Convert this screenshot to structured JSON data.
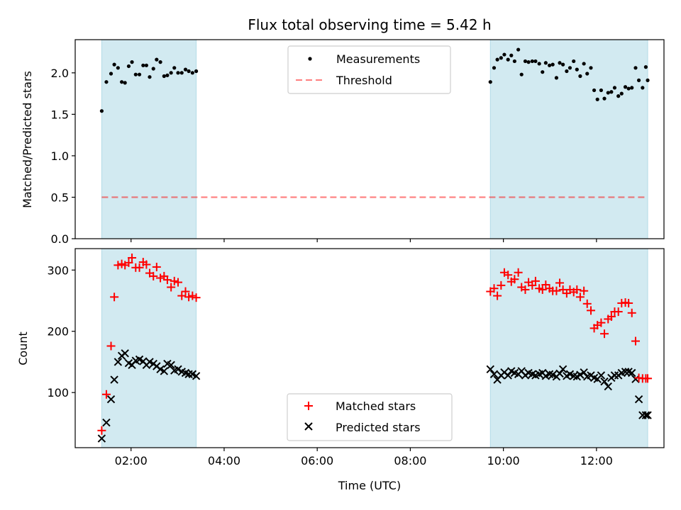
{
  "title": "Flux total observing time = 5.42 h",
  "colors": {
    "shade": "#add8e6",
    "threshold": "#ff0000",
    "matched": "#ff0000",
    "predicted": "#000000",
    "measurement": "#000000"
  },
  "chart_data": [
    {
      "type": "scatter",
      "ylabel": "Matched/Predicted stars",
      "xlabel": "",
      "xlim": [
        0.8,
        13.45
      ],
      "ylim": [
        0,
        2.4
      ],
      "yticks": [
        0.0,
        0.5,
        1.0,
        1.5,
        2.0
      ],
      "ytick_labels": [
        "0.0",
        "0.5",
        "1.0",
        "1.5",
        "2.0"
      ],
      "grid": false,
      "legend_position": "top-center",
      "shaded_intervals": [
        [
          1.37,
          3.4
        ],
        [
          9.72,
          13.1
        ]
      ],
      "threshold": {
        "name": "Threshold",
        "y": 0.5,
        "x_start": 1.37,
        "x_end": 13.1
      },
      "series": [
        {
          "name": "Measurements",
          "marker": "dot",
          "x": [
            1.37,
            1.47,
            1.57,
            1.64,
            1.72,
            1.8,
            1.87,
            1.95,
            2.02,
            2.1,
            2.18,
            2.26,
            2.33,
            2.4,
            2.48,
            2.55,
            2.63,
            2.71,
            2.78,
            2.86,
            2.93,
            3.01,
            3.09,
            3.17,
            3.24,
            3.32,
            3.4,
            9.72,
            9.8,
            9.87,
            9.95,
            10.02,
            10.1,
            10.17,
            10.24,
            10.32,
            10.39,
            10.47,
            10.54,
            10.62,
            10.69,
            10.77,
            10.84,
            10.91,
            10.99,
            11.06,
            11.14,
            11.21,
            11.28,
            11.36,
            11.43,
            11.51,
            11.58,
            11.65,
            11.73,
            11.8,
            11.88,
            11.95,
            12.02,
            12.1,
            12.17,
            12.25,
            12.32,
            12.39,
            12.47,
            12.54,
            12.62,
            12.69,
            12.76,
            12.84,
            12.91,
            12.99,
            13.06,
            13.1
          ],
          "y": [
            1.54,
            1.89,
            1.99,
            2.1,
            2.06,
            1.89,
            1.88,
            2.08,
            2.13,
            1.98,
            1.98,
            2.09,
            2.09,
            1.95,
            2.05,
            2.16,
            2.13,
            1.96,
            1.97,
            2.0,
            2.06,
            2.0,
            2.0,
            2.04,
            2.02,
            2.0,
            2.02,
            1.89,
            2.06,
            2.16,
            2.18,
            2.22,
            2.16,
            2.21,
            2.14,
            2.28,
            1.98,
            2.14,
            2.13,
            2.14,
            2.14,
            2.11,
            2.01,
            2.12,
            2.09,
            2.1,
            1.94,
            2.12,
            2.1,
            2.02,
            2.06,
            2.14,
            2.04,
            1.96,
            2.11,
            1.99,
            2.06,
            1.79,
            1.68,
            1.79,
            1.69,
            1.76,
            1.77,
            1.82,
            1.72,
            1.75,
            1.83,
            1.81,
            1.82,
            2.06,
            1.91,
            1.82,
            2.07,
            1.91
          ]
        }
      ]
    },
    {
      "type": "scatter",
      "ylabel": "Count",
      "xlabel": "Time (UTC)",
      "xlim": [
        0.8,
        13.45
      ],
      "ylim": [
        10,
        335
      ],
      "yticks": [
        100,
        200,
        300
      ],
      "ytick_labels": [
        "100",
        "200",
        "300"
      ],
      "xticks": [
        2,
        4,
        6,
        8,
        10,
        12
      ],
      "xtick_labels": [
        "02:00",
        "04:00",
        "06:00",
        "08:00",
        "10:00",
        "12:00"
      ],
      "grid": false,
      "legend_position": "lower-center",
      "shaded_intervals": [
        [
          1.37,
          3.4
        ],
        [
          9.72,
          13.1
        ]
      ],
      "series": [
        {
          "name": "Matched stars",
          "marker": "plus",
          "x": [
            1.37,
            1.47,
            1.57,
            1.64,
            1.72,
            1.8,
            1.87,
            1.95,
            2.02,
            2.1,
            2.18,
            2.26,
            2.33,
            2.4,
            2.48,
            2.55,
            2.63,
            2.71,
            2.78,
            2.86,
            2.93,
            3.01,
            3.09,
            3.17,
            3.24,
            3.32,
            3.4,
            9.72,
            9.8,
            9.87,
            9.95,
            10.02,
            10.1,
            10.17,
            10.24,
            10.32,
            10.39,
            10.47,
            10.54,
            10.62,
            10.69,
            10.77,
            10.84,
            10.91,
            10.99,
            11.06,
            11.14,
            11.21,
            11.28,
            11.36,
            11.43,
            11.51,
            11.58,
            11.65,
            11.73,
            11.8,
            11.88,
            11.95,
            12.02,
            12.1,
            12.17,
            12.25,
            12.32,
            12.39,
            12.47,
            12.54,
            12.62,
            12.69,
            12.76,
            12.84,
            12.91,
            12.99,
            13.06,
            13.1
          ],
          "y": [
            38,
            97,
            176,
            256,
            308,
            310,
            308,
            312,
            320,
            304,
            304,
            313,
            309,
            295,
            290,
            305,
            287,
            290,
            284,
            272,
            282,
            280,
            258,
            265,
            256,
            258,
            255,
            265,
            270,
            258,
            275,
            296,
            292,
            281,
            285,
            296,
            272,
            268,
            280,
            275,
            282,
            270,
            268,
            276,
            270,
            266,
            266,
            279,
            268,
            262,
            268,
            264,
            268,
            256,
            266,
            245,
            234,
            205,
            210,
            214,
            196,
            220,
            224,
            232,
            232,
            246,
            247,
            246,
            230,
            184,
            124,
            123,
            123,
            123
          ]
        },
        {
          "name": "Predicted stars",
          "marker": "x",
          "x": [
            1.37,
            1.47,
            1.57,
            1.64,
            1.72,
            1.8,
            1.87,
            1.95,
            2.02,
            2.1,
            2.18,
            2.26,
            2.33,
            2.4,
            2.48,
            2.55,
            2.63,
            2.71,
            2.78,
            2.86,
            2.93,
            3.01,
            3.09,
            3.17,
            3.24,
            3.32,
            3.4,
            9.72,
            9.8,
            9.87,
            9.95,
            10.02,
            10.1,
            10.17,
            10.24,
            10.32,
            10.39,
            10.47,
            10.54,
            10.62,
            10.69,
            10.77,
            10.84,
            10.91,
            10.99,
            11.06,
            11.14,
            11.21,
            11.28,
            11.36,
            11.43,
            11.51,
            11.58,
            11.65,
            11.73,
            11.8,
            11.88,
            11.95,
            12.02,
            12.1,
            12.17,
            12.25,
            12.32,
            12.39,
            12.47,
            12.54,
            12.62,
            12.69,
            12.76,
            12.84,
            12.91,
            12.99,
            13.06,
            13.1
          ],
          "y": [
            25,
            51,
            89,
            121,
            150,
            160,
            164,
            148,
            145,
            152,
            154,
            151,
            145,
            150,
            147,
            143,
            138,
            135,
            147,
            145,
            136,
            138,
            134,
            132,
            130,
            130,
            127,
            138,
            130,
            121,
            128,
            133,
            128,
            135,
            132,
            130,
            135,
            128,
            132,
            130,
            128,
            130,
            132,
            127,
            130,
            129,
            126,
            131,
            138,
            127,
            130,
            127,
            126,
            129,
            133,
            126,
            128,
            124,
            122,
            128,
            118,
            110,
            124,
            128,
            128,
            132,
            134,
            134,
            132,
            122,
            89,
            63,
            63,
            63
          ]
        }
      ]
    }
  ]
}
